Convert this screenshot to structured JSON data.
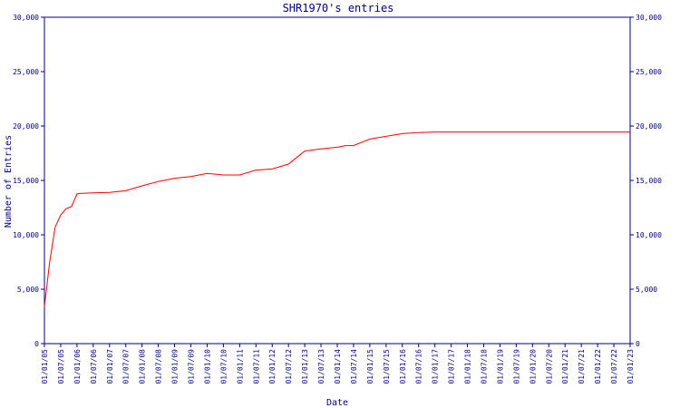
{
  "chart_data": {
    "type": "line",
    "title": "SHR1970's entries",
    "xlabel": "Date",
    "ylabel": "Number of Entries",
    "ylim": [
      0,
      30000
    ],
    "y_ticks": [
      0,
      5000,
      10000,
      15000,
      20000,
      25000,
      30000
    ],
    "y_tick_labels": [
      "0",
      "5,000",
      "10,000",
      "15,000",
      "20,000",
      "25,000",
      "30,000"
    ],
    "x_tick_labels": [
      "01/01/05",
      "01/07/05",
      "01/01/06",
      "01/07/06",
      "01/01/07",
      "01/07/07",
      "01/01/08",
      "01/07/08",
      "01/01/09",
      "01/07/09",
      "01/01/10",
      "01/07/10",
      "01/01/11",
      "01/07/11",
      "01/01/12",
      "01/07/12",
      "01/01/13",
      "01/07/13",
      "01/01/14",
      "01/07/14",
      "01/01/15",
      "01/07/15",
      "01/01/16",
      "01/07/16",
      "01/01/17",
      "01/07/17",
      "01/01/18",
      "01/07/18",
      "01/01/19",
      "01/07/19",
      "01/01/20",
      "01/07/20",
      "01/01/21",
      "01/07/21",
      "01/01/22",
      "01/07/22",
      "01/01/23"
    ],
    "x_range": [
      "2005-01-01",
      "2023-01-01"
    ],
    "grid": false,
    "right_axis": true,
    "line_color": "#ff0000",
    "axis_color": "#000080",
    "series": [
      {
        "x": [
          "2005-01-01",
          "2005-03-01",
          "2005-05-01",
          "2005-07-01",
          "2005-09-01",
          "2005-11-01",
          "2006-01-01",
          "2006-02-01",
          "2006-07-01",
          "2007-01-01",
          "2007-07-01",
          "2008-01-01",
          "2008-07-01",
          "2009-01-01",
          "2009-07-01",
          "2010-01-01",
          "2010-07-01",
          "2011-01-01",
          "2011-07-01",
          "2012-01-01",
          "2012-07-01",
          "2012-09-01",
          "2013-01-01",
          "2013-07-01",
          "2014-01-01",
          "2014-04-01",
          "2014-07-01",
          "2015-01-01",
          "2015-07-01",
          "2016-01-01",
          "2016-07-01",
          "2017-01-01",
          "2017-07-01",
          "2018-01-01",
          "2018-07-01",
          "2019-01-01",
          "2019-07-01",
          "2020-01-01",
          "2020-07-01",
          "2021-01-01",
          "2021-07-01",
          "2022-01-01",
          "2022-07-01",
          "2023-01-01"
        ],
        "y": [
          3400,
          7500,
          10700,
          11800,
          12400,
          12600,
          13750,
          13800,
          13850,
          13900,
          14050,
          14500,
          14900,
          15200,
          15350,
          15650,
          15500,
          15500,
          15950,
          16050,
          16500,
          16900,
          17700,
          17900,
          18050,
          18200,
          18200,
          18800,
          19050,
          19300,
          19400,
          19450,
          19450,
          19450,
          19450,
          19450,
          19450,
          19450,
          19450,
          19450,
          19450,
          19450,
          19450,
          19450
        ]
      }
    ]
  }
}
